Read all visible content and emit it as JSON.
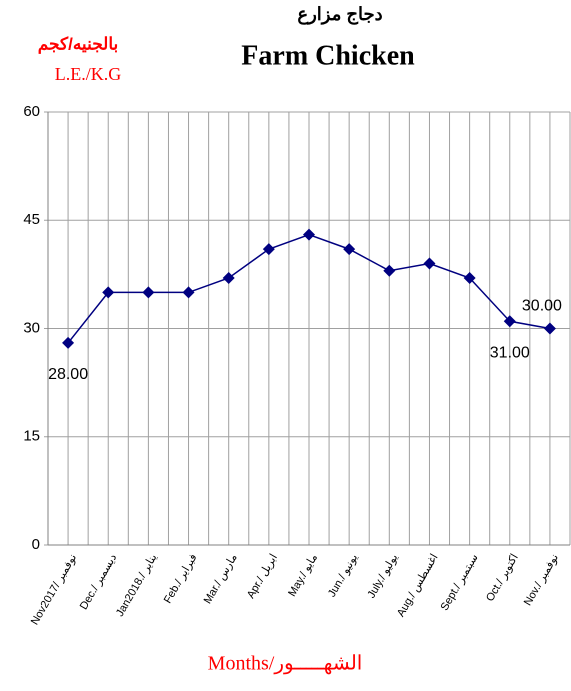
{
  "chart_data": {
    "type": "line",
    "title": "Farm Chicken",
    "subtitle": "دجاج مزارع",
    "y_label": "بالجنيه/كجم",
    "y_unit_label": "L.E./K.G",
    "x_label": "Months/الشهـــــور",
    "categories": [
      "Nov2017/ نوفمبر",
      "Dec./ ديسمبر",
      "Jan2018./ يناير",
      "Feb./ فبراير",
      "Mar./ مارس",
      "Apr./ ابريل",
      "May./ مايو",
      "Jun./ يونيو",
      "July./ يوليو",
      "Aug./ اغسطس",
      "Sept./ سبتمبر",
      "Oct./ اكتوبر",
      "Nov./ نوفمبر"
    ],
    "series": [
      {
        "name": "Farm Chicken",
        "color": "#000080",
        "values": [
          28,
          35,
          35,
          35,
          37,
          41,
          43,
          41,
          38,
          39,
          37,
          31,
          30
        ],
        "value_labels": [
          "28.00",
          null,
          null,
          null,
          null,
          null,
          null,
          null,
          null,
          null,
          null,
          "31.00",
          "30.00"
        ]
      }
    ],
    "ylim": [
      0,
      60
    ],
    "yticks": [
      0,
      15,
      30,
      45,
      60
    ],
    "grid": true
  }
}
